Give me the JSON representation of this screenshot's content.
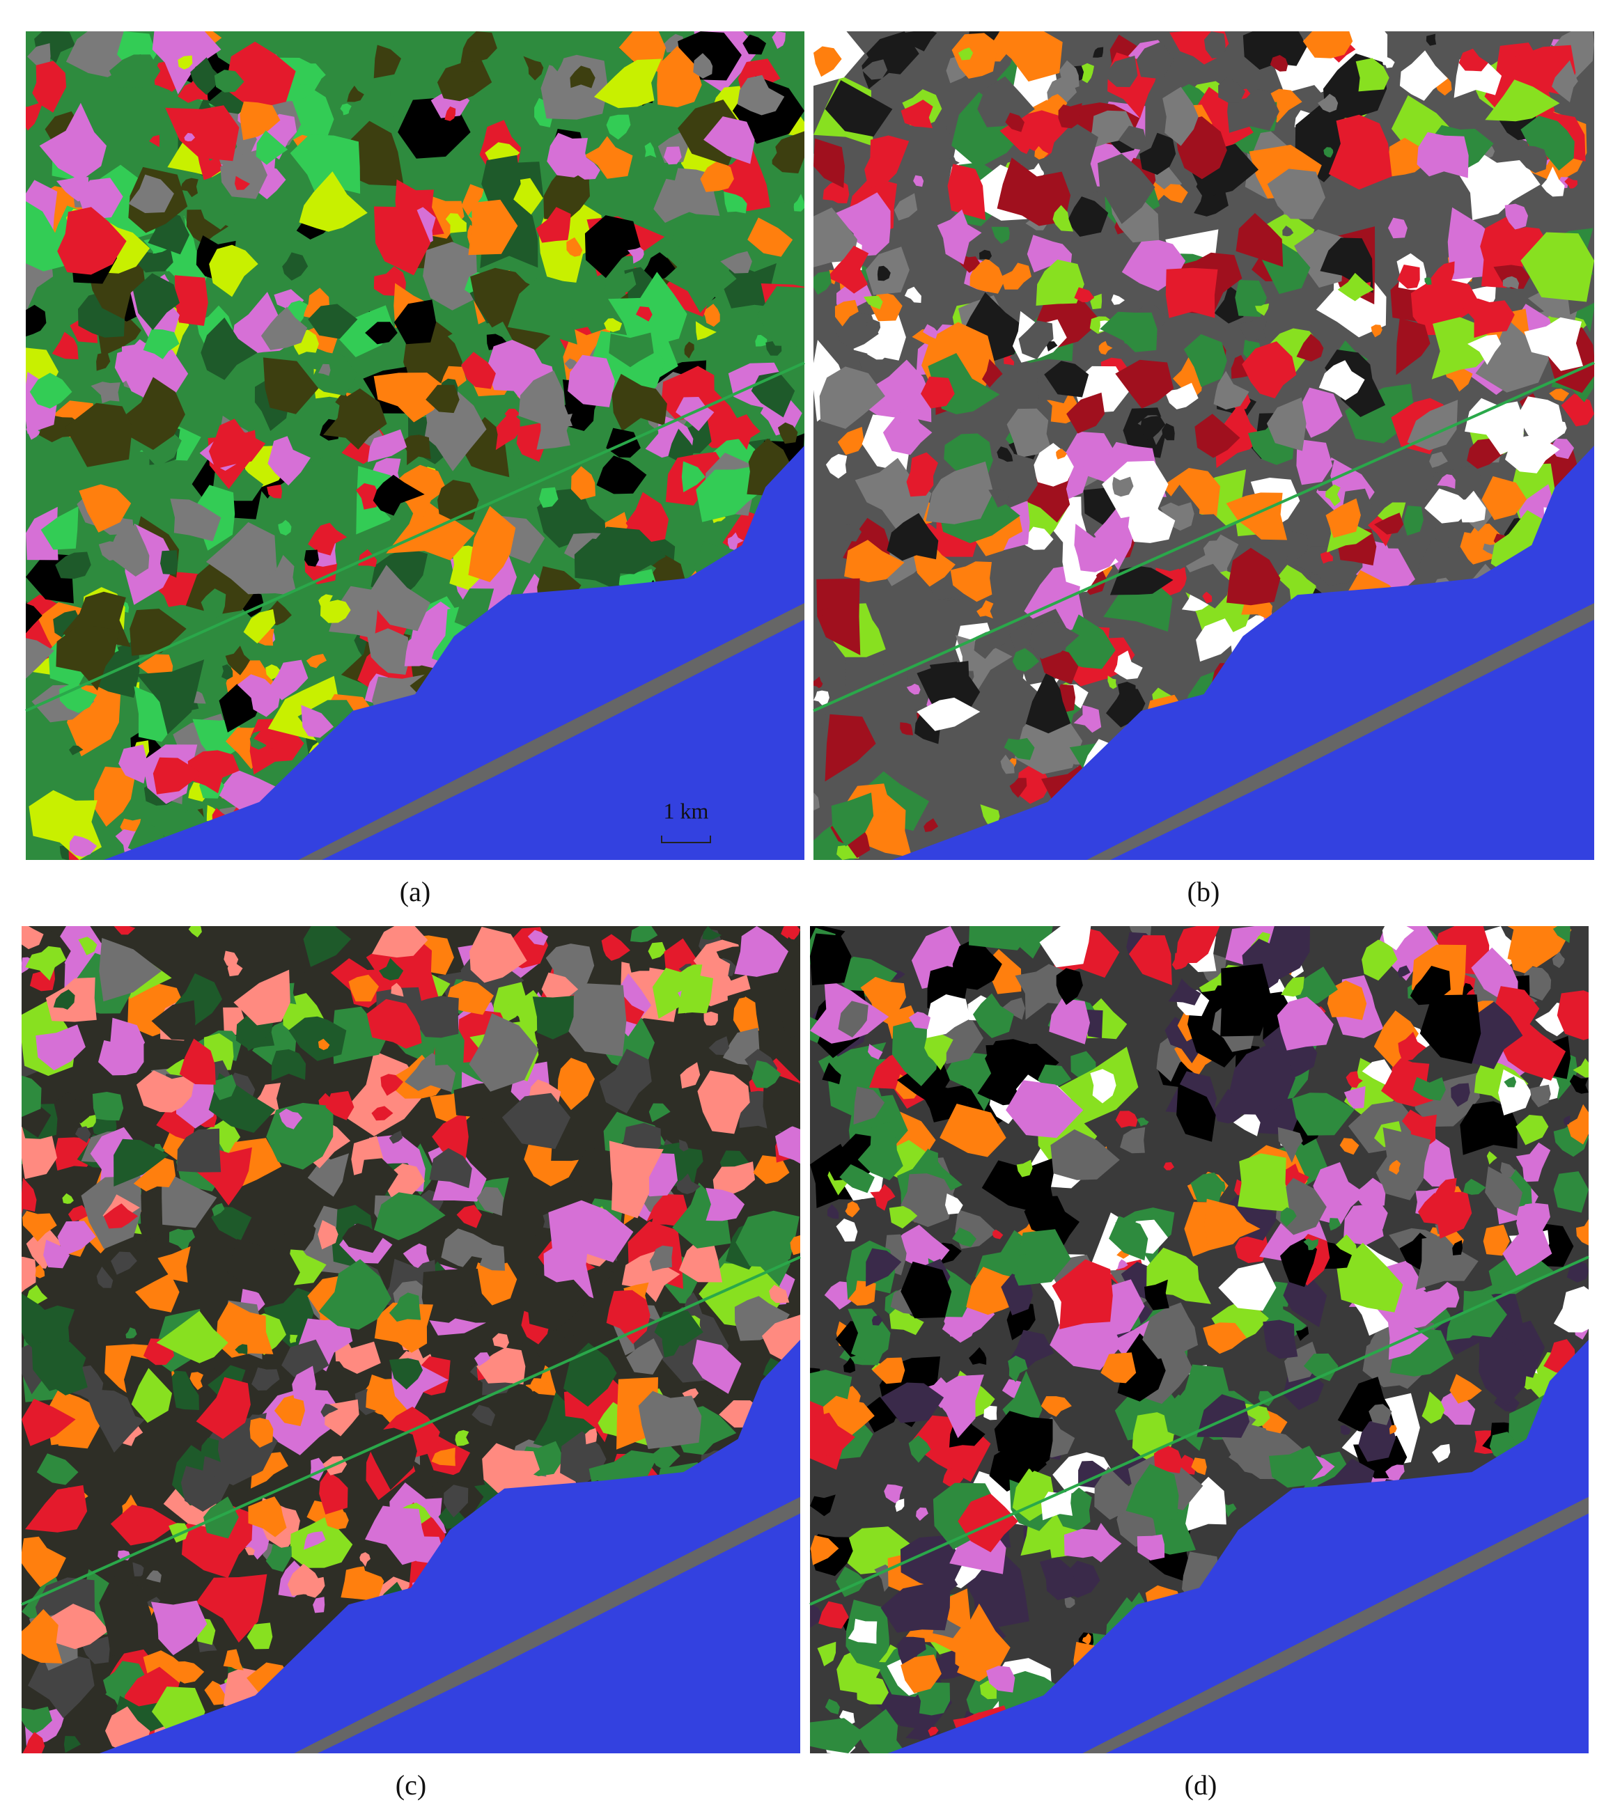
{
  "panels": [
    {
      "label": "(a)"
    },
    {
      "label": "(b)"
    },
    {
      "label": "(c)"
    },
    {
      "label": "(d)"
    }
  ],
  "scale_bar": {
    "label": "1 km"
  }
}
